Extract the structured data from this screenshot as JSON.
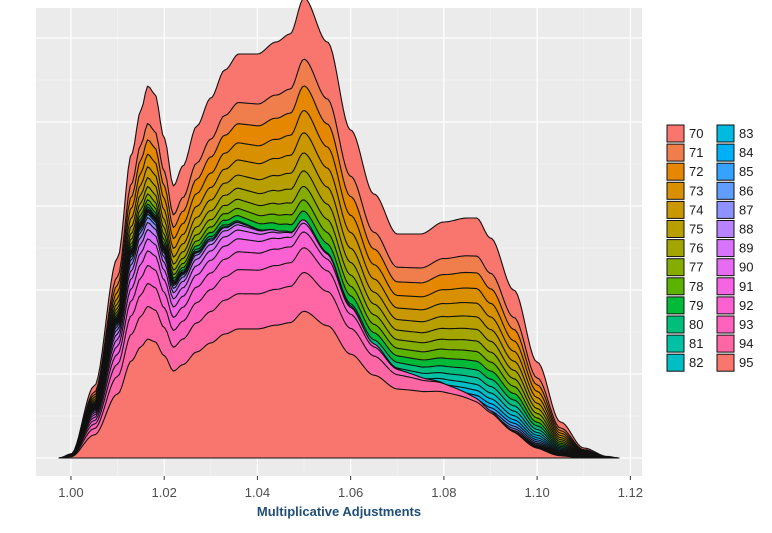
{
  "chart_data": {
    "type": "area",
    "stacked": true,
    "xlabel": "Multiplicative Adjustments",
    "ylabel": "",
    "title": "",
    "xlim": [
      0.9925,
      1.1225
    ],
    "xticks": [
      1.0,
      1.02,
      1.04,
      1.06,
      1.08,
      1.1,
      1.12
    ],
    "xtick_labels": [
      "1.00",
      "1.02",
      "1.04",
      "1.06",
      "1.08",
      "1.10",
      "1.12"
    ],
    "grid": true,
    "panel_background": "#ebebeb",
    "legend_position": "right",
    "series_names": [
      "70",
      "71",
      "72",
      "73",
      "74",
      "75",
      "76",
      "77",
      "78",
      "79",
      "80",
      "81",
      "82",
      "83",
      "84",
      "85",
      "86",
      "87",
      "88",
      "89",
      "90",
      "91",
      "92",
      "93",
      "94",
      "95"
    ],
    "series_colors": [
      "#f8766d",
      "#f07e4d",
      "#e58700",
      "#d89000",
      "#c99800",
      "#b79f00",
      "#a3a500",
      "#85ad00",
      "#5bb300",
      "#00ba38",
      "#00bf7d",
      "#00c1a3",
      "#00bfc4",
      "#00bae0",
      "#00b0f6",
      "#35a2ff",
      "#619cff",
      "#8f91ff",
      "#b983ff",
      "#d874fc",
      "#e76bf3",
      "#f564e3",
      "#fd61d1",
      "#ff62bc",
      "#ff67a4",
      "#f8766d"
    ],
    "profile_x": [
      0.9975,
      1.0,
      1.005,
      1.01,
      1.013,
      1.015,
      1.0165,
      1.018,
      1.02,
      1.022,
      1.024,
      1.027,
      1.03,
      1.033,
      1.036,
      1.04,
      1.044,
      1.047,
      1.05,
      1.055,
      1.06,
      1.065,
      1.07,
      1.075,
      1.08,
      1.085,
      1.087,
      1.09,
      1.095,
      1.1,
      1.105,
      1.11,
      1.115,
      1.1175
    ],
    "profile_y": [
      0.0,
      0.01,
      0.18,
      0.5,
      0.76,
      0.87,
      0.93,
      0.91,
      0.8,
      0.68,
      0.73,
      0.83,
      0.9,
      0.97,
      1.01,
      1.01,
      1.04,
      1.06,
      1.15,
      1.04,
      0.82,
      0.66,
      0.56,
      0.56,
      0.59,
      0.6,
      0.6,
      0.55,
      0.42,
      0.24,
      0.09,
      0.025,
      0.004,
      0.0
    ]
  }
}
